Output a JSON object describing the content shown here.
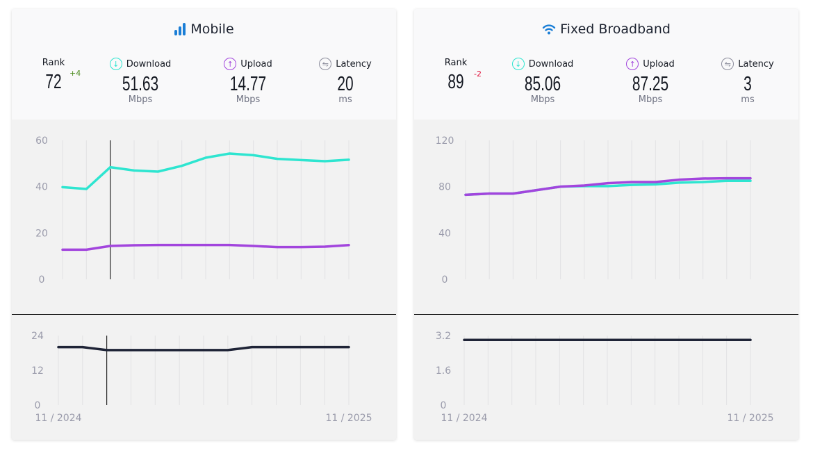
{
  "panels": [
    {
      "title": "Mobile",
      "icon": "signal-bars-icon",
      "rank": {
        "label": "Rank",
        "value": "72",
        "delta": "+4",
        "delta_color": "#4a8a1c"
      },
      "download": {
        "label": "Download",
        "value": "51.63",
        "unit": "Mbps"
      },
      "upload": {
        "label": "Upload",
        "value": "14.77",
        "unit": "Mbps"
      },
      "latency": {
        "label": "Latency",
        "value": "20",
        "unit": "ms"
      }
    },
    {
      "title": "Fixed Broadband",
      "icon": "wifi-icon",
      "rank": {
        "label": "Rank",
        "value": "89",
        "delta": "-2",
        "delta_color": "#e0143c"
      },
      "download": {
        "label": "Download",
        "value": "85.06",
        "unit": "Mbps"
      },
      "upload": {
        "label": "Upload",
        "value": "87.25",
        "unit": "Mbps"
      },
      "latency": {
        "label": "Latency",
        "value": "3",
        "unit": "ms"
      }
    }
  ],
  "colors": {
    "download": "#2ee5d0",
    "upload": "#a245dd",
    "latency": "#1f2437",
    "accent": "#1a7ed6"
  },
  "chart_data": [
    {
      "type": "line",
      "panel": "Mobile",
      "chart": "speed",
      "ylim": [
        0,
        60
      ],
      "yticks": [
        "0",
        "20",
        "40",
        "60"
      ],
      "hover_index": 2,
      "series": [
        {
          "key": "download",
          "values": [
            39.8,
            39,
            48.4,
            47,
            46.5,
            49,
            52.5,
            54.3,
            53.6,
            52,
            51.5,
            51,
            51.63
          ]
        },
        {
          "key": "upload",
          "values": [
            12.8,
            12.8,
            14.4,
            14.7,
            14.8,
            14.8,
            14.8,
            14.8,
            14.4,
            13.9,
            13.9,
            14.1,
            14.77
          ]
        }
      ]
    },
    {
      "type": "line",
      "panel": "Mobile",
      "chart": "latency",
      "ylim": [
        0,
        24
      ],
      "yticks": [
        "0",
        "12",
        "24"
      ],
      "xticks": [
        "11 / 2024",
        "11 / 2025"
      ],
      "hover_index": 2,
      "series": [
        {
          "key": "latency",
          "values": [
            20,
            20,
            19,
            19,
            19,
            19,
            19,
            19,
            20,
            20,
            20,
            20,
            20
          ]
        }
      ]
    },
    {
      "type": "line",
      "panel": "Fixed Broadband",
      "chart": "speed",
      "ylim": [
        0,
        120
      ],
      "yticks": [
        "0",
        "40",
        "80",
        "120"
      ],
      "series": [
        {
          "key": "download",
          "values": [
            73,
            74,
            74,
            77,
            80,
            80.5,
            80.5,
            81.5,
            82,
            83.5,
            84,
            85.06,
            85.06
          ]
        },
        {
          "key": "upload",
          "values": [
            73,
            74,
            74,
            77,
            80,
            81,
            83,
            84,
            84,
            86,
            87,
            87.25,
            87.25
          ]
        }
      ]
    },
    {
      "type": "line",
      "panel": "Fixed Broadband",
      "chart": "latency",
      "ylim": [
        0,
        3.2
      ],
      "yticks": [
        "0",
        "1.6",
        "3.2"
      ],
      "xticks": [
        "11 / 2024",
        "11 / 2025"
      ],
      "series": [
        {
          "key": "latency",
          "values": [
            3,
            3,
            3,
            3,
            3,
            3,
            3,
            3,
            3,
            3,
            3,
            3,
            3
          ]
        }
      ]
    }
  ]
}
